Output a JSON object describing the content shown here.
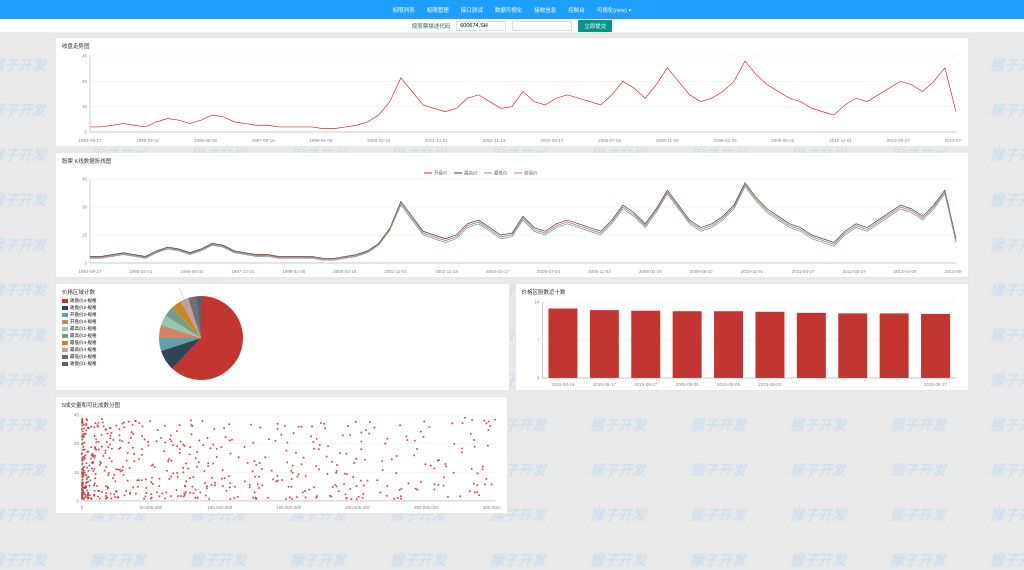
{
  "watermark_text": "猴子开发",
  "nav": {
    "items": [
      "权限列表",
      "权限管理",
      "接口测试",
      "数据可视化",
      "接收信息",
      "控制台",
      "可视化(new) ▾"
    ]
  },
  "toolbar": {
    "label": "按股票描述代码",
    "input_value": "600674.SH",
    "dropdown_placeholder": "",
    "button": "立即提交"
  },
  "chart1": {
    "title": "收盘走势图",
    "type": "line",
    "ylim": [
      0,
      45
    ],
    "yticks": [
      0,
      15,
      30,
      45
    ],
    "x_labels": [
      "1993-09-17",
      "1995-02-01",
      "1996-05-30",
      "1997-09-16",
      "1999-01-05",
      "2000-02-15",
      "2001-11-01",
      "2002-11-13",
      "2004-03-17",
      "2005-07-04",
      "2006-11-03",
      "2008-02-26",
      "2009-06-22",
      "2010-11-01",
      "2012-02-27",
      "2013-07-08"
    ],
    "color": "#c23531",
    "grid_color": "#e0e0e0",
    "data": [
      3,
      3,
      4,
      5,
      4,
      3,
      6,
      8,
      7,
      5,
      7,
      10,
      9,
      6,
      5,
      4,
      4,
      3,
      3,
      3,
      3,
      2,
      2,
      3,
      4,
      6,
      10,
      18,
      32,
      24,
      16,
      14,
      12,
      14,
      20,
      22,
      18,
      14,
      15,
      24,
      18,
      16,
      20,
      22,
      20,
      18,
      16,
      22,
      30,
      26,
      20,
      28,
      38,
      30,
      22,
      18,
      20,
      24,
      30,
      42,
      34,
      28,
      24,
      20,
      18,
      14,
      12,
      10,
      16,
      20,
      18,
      22,
      26,
      30,
      28,
      24,
      30,
      38,
      12
    ]
  },
  "chart2": {
    "title": "股票 K线数据折线图",
    "type": "multi-line",
    "legend_items": [
      "开盘价",
      "最高价",
      "最低价",
      "收盘价"
    ],
    "legend_colors": [
      "#c23531",
      "#2f4554",
      "#61a0a8",
      "#d48265"
    ],
    "ylim": [
      0,
      45
    ],
    "yticks": [
      0,
      15,
      30,
      45
    ],
    "x_labels": [
      "1993-09-17",
      "1995-02-01",
      "1996-05-30",
      "1997-12-31",
      "1998-01-05",
      "2000-02-15",
      "2001-11-01",
      "2002-11-13",
      "2004-03-17",
      "2005-07-04",
      "2006-11-03",
      "2008-02-26",
      "2009-06-22",
      "2010-11-01",
      "2011-04-27",
      "2012-02-27",
      "2013-04-09",
      "2013-09-17"
    ],
    "grid_color": "#e0e0e0",
    "series": [
      {
        "color": "#c23531",
        "data": [
          3,
          3,
          4,
          5,
          4,
          3,
          6,
          8,
          7,
          5,
          7,
          10,
          9,
          6,
          5,
          4,
          4,
          3,
          3,
          3,
          3,
          2,
          2,
          3,
          4,
          6,
          10,
          18,
          32,
          24,
          16,
          14,
          12,
          14,
          20,
          22,
          18,
          14,
          15,
          24,
          18,
          16,
          20,
          22,
          20,
          18,
          16,
          22,
          30,
          26,
          20,
          28,
          38,
          30,
          22,
          18,
          20,
          24,
          30,
          42,
          34,
          28,
          24,
          20,
          18,
          14,
          12,
          10,
          16,
          20,
          18,
          22,
          26,
          30,
          28,
          24,
          30,
          38,
          12
        ]
      },
      {
        "color": "#2f4554",
        "data": [
          3.5,
          3.5,
          4.5,
          5.5,
          4.5,
          3.5,
          6.5,
          8.5,
          7.5,
          5.5,
          7.5,
          10.5,
          9.5,
          6.5,
          5.5,
          4.5,
          4.5,
          3.5,
          3.5,
          3.5,
          3.5,
          2.5,
          2.5,
          3.5,
          4.5,
          6.5,
          10.5,
          18.5,
          33,
          25,
          17,
          15,
          13,
          15,
          21,
          23,
          19,
          15,
          16,
          25,
          19,
          17,
          21,
          23,
          21,
          19,
          17,
          23,
          31,
          27,
          21,
          29,
          39,
          31,
          23,
          19,
          21,
          25,
          31,
          43,
          35,
          29,
          25,
          21,
          19,
          15,
          13,
          11,
          17,
          21,
          19,
          23,
          27,
          31,
          29,
          25,
          31,
          39,
          13
        ]
      },
      {
        "color": "#61a0a8",
        "data": [
          2.5,
          2.5,
          3.5,
          4.5,
          3.5,
          2.5,
          5.5,
          7.5,
          6.5,
          4.5,
          6.5,
          9.5,
          8.5,
          5.5,
          4.5,
          3.5,
          3.5,
          2.5,
          2.5,
          2.5,
          2.5,
          1.5,
          1.5,
          2.5,
          3.5,
          5.5,
          9.5,
          17.5,
          31,
          23,
          15,
          13,
          11,
          13,
          19,
          21,
          17,
          13,
          14,
          23,
          17,
          15,
          19,
          21,
          19,
          17,
          15,
          21,
          29,
          25,
          19,
          27,
          37,
          29,
          21,
          17,
          19,
          23,
          29,
          41,
          33,
          27,
          23,
          19,
          17,
          13,
          11,
          9,
          15,
          19,
          17,
          21,
          25,
          29,
          27,
          23,
          29,
          37,
          11
        ]
      },
      {
        "color": "#d48265",
        "data": [
          3,
          3,
          4,
          5,
          4,
          3,
          6,
          8,
          7,
          5,
          7,
          10,
          9,
          6,
          5,
          4,
          4,
          3,
          3,
          3,
          3,
          2,
          2,
          3,
          4,
          6,
          10,
          18,
          32,
          24,
          16,
          14,
          12,
          14,
          20,
          22,
          18,
          14,
          15,
          24,
          18,
          16,
          20,
          22,
          20,
          18,
          16,
          22,
          30,
          26,
          20,
          28,
          38,
          30,
          22,
          18,
          20,
          24,
          30,
          42,
          34,
          28,
          24,
          20,
          18,
          14,
          12,
          10,
          16,
          20,
          18,
          22,
          26,
          30,
          28,
          24,
          30,
          38,
          12
        ]
      }
    ]
  },
  "pie": {
    "title": "价格区域计数",
    "type": "pie",
    "callout_label": "最高价4-规格",
    "slices": [
      {
        "label": "收盘价4-规格",
        "value": 62,
        "color": "#c23531"
      },
      {
        "label": "收盘价2-规格",
        "value": 8,
        "color": "#2f4554"
      },
      {
        "label": "开盘价2-规格",
        "value": 5,
        "color": "#61a0a8"
      },
      {
        "label": "开盘价4-规格",
        "value": 5,
        "color": "#d48265"
      },
      {
        "label": "最高价1-规格",
        "value": 4,
        "color": "#91c7ae"
      },
      {
        "label": "最高价2-规格",
        "value": 4,
        "color": "#749f83"
      },
      {
        "label": "最低价4-规格",
        "value": 4,
        "color": "#ca8622"
      },
      {
        "label": "最高价4-规格",
        "value": 3,
        "color": "#bda29a"
      },
      {
        "label": "最低价2-规格",
        "value": 3,
        "color": "#6e7074"
      },
      {
        "label": "收盘价1-规格",
        "value": 2,
        "color": "#546570"
      }
    ]
  },
  "bar": {
    "title": "价格区股数近十数",
    "type": "bar",
    "color": "#c23531",
    "grid_color": "#e0e0e0",
    "ylim": [
      0,
      14
    ],
    "yticks": [
      0,
      7,
      14
    ],
    "categories": [
      "2015-08-16",
      "2015-08-17",
      "2015-08-17",
      "2005-08-05",
      "2015-08-05",
      "2015-08-03",
      "",
      "",
      "",
      "2015-08-17"
    ],
    "values": [
      12.8,
      12.5,
      12.4,
      12.3,
      12.3,
      12.2,
      12.0,
      11.9,
      11.9,
      11.8
    ]
  },
  "scatter": {
    "title": "5成交量和可比成数分图",
    "type": "scatter",
    "color": "#c23531",
    "grid_color": "#e0e0e0",
    "xlim": [
      0,
      300000000
    ],
    "xticks": [
      0,
      50000000,
      100000000,
      150000000,
      200000000,
      250000000,
      300000000
    ],
    "ylim": [
      0,
      45
    ],
    "yticks": [
      0,
      15,
      30,
      45
    ],
    "n_points": 600
  },
  "colors": {
    "navbar": "#1e9fff",
    "button": "#009688",
    "background": "#e9e9e9",
    "panel_bg": "#ffffff",
    "watermark": "#c4d9f0"
  }
}
